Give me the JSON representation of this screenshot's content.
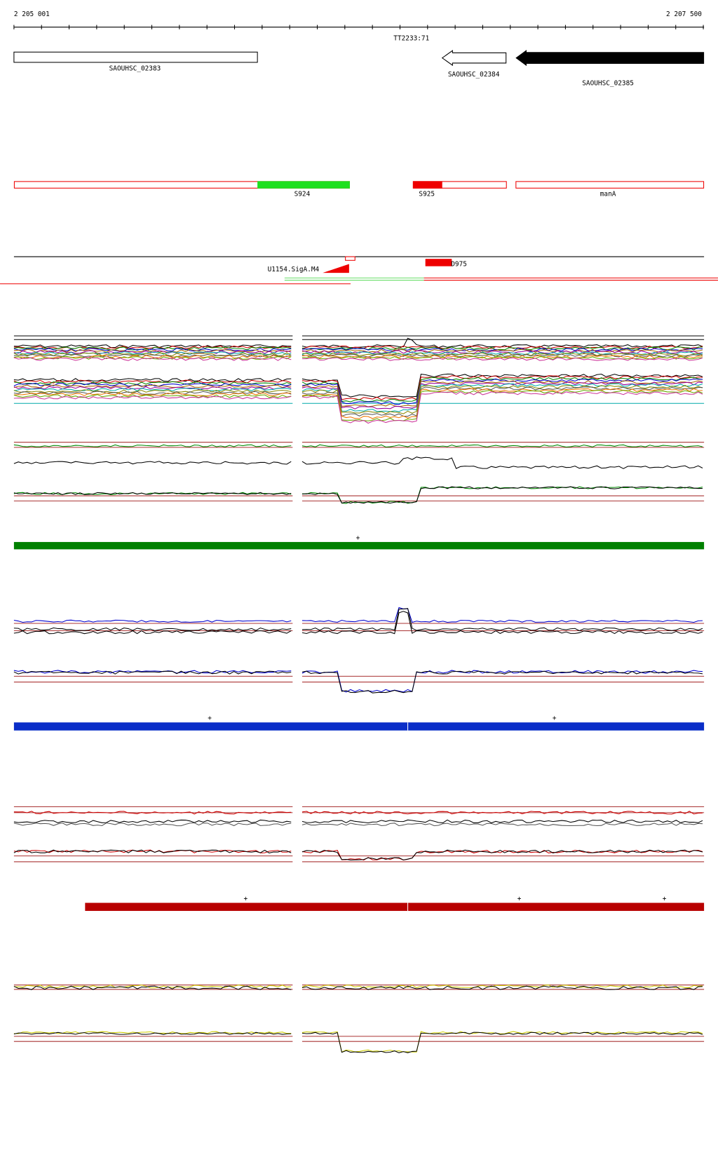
{
  "ruler": {
    "start": "2 205 001",
    "end": "2 207 500",
    "marker": "TT2233:71"
  },
  "genes": [
    "SAOUHSC_02383",
    "SAOUHSC_02384",
    "SAOUHSC_02385"
  ],
  "features": [
    "S924",
    "S925",
    "manA"
  ],
  "sites": [
    "U1154.SigA.M4",
    "D975"
  ],
  "tracks": [
    {
      "strand_marks": [
        "+"
      ]
    },
    {
      "strand_marks": [
        "+",
        "+"
      ]
    },
    {
      "strand_marks": [
        "+",
        "+",
        "+"
      ]
    }
  ]
}
